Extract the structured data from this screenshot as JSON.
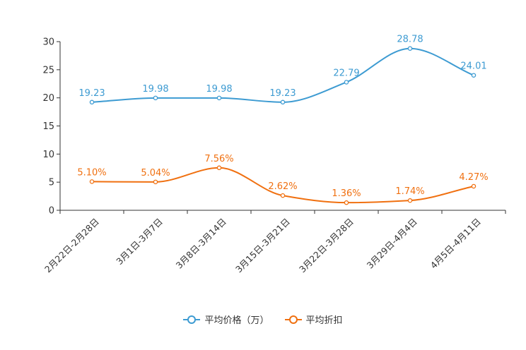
{
  "chart_data": {
    "type": "line",
    "categories": [
      "2月22日-2月28日",
      "3月1日-3月7日",
      "3月8日-3月14日",
      "3月15日-3月21日",
      "3月22日-3月28日",
      "3月29日-4月4日",
      "4月5日-4月11日"
    ],
    "series": [
      {
        "name": "平均价格（万）",
        "color": "#3d9bd2",
        "values": [
          19.23,
          19.98,
          19.98,
          19.23,
          22.79,
          28.78,
          24.01
        ],
        "labels": [
          "19.23",
          "19.98",
          "19.98",
          "19.23",
          "22.79",
          "28.78",
          "24.01"
        ]
      },
      {
        "name": "平均折扣",
        "color": "#f07010",
        "values": [
          5.1,
          5.04,
          7.56,
          2.62,
          1.36,
          1.74,
          4.27
        ],
        "labels": [
          "5.10%",
          "5.04%",
          "7.56%",
          "2.62%",
          "1.36%",
          "1.74%",
          "4.27%"
        ]
      }
    ],
    "yticks": [
      0,
      5,
      10,
      15,
      20,
      25,
      30
    ],
    "ylim": [
      0,
      30
    ],
    "title": "",
    "xlabel": "",
    "ylabel": "",
    "legend_position": "bottom-center"
  },
  "legend": {
    "item1": "平均价格（万）",
    "item2": "平均折扣"
  }
}
